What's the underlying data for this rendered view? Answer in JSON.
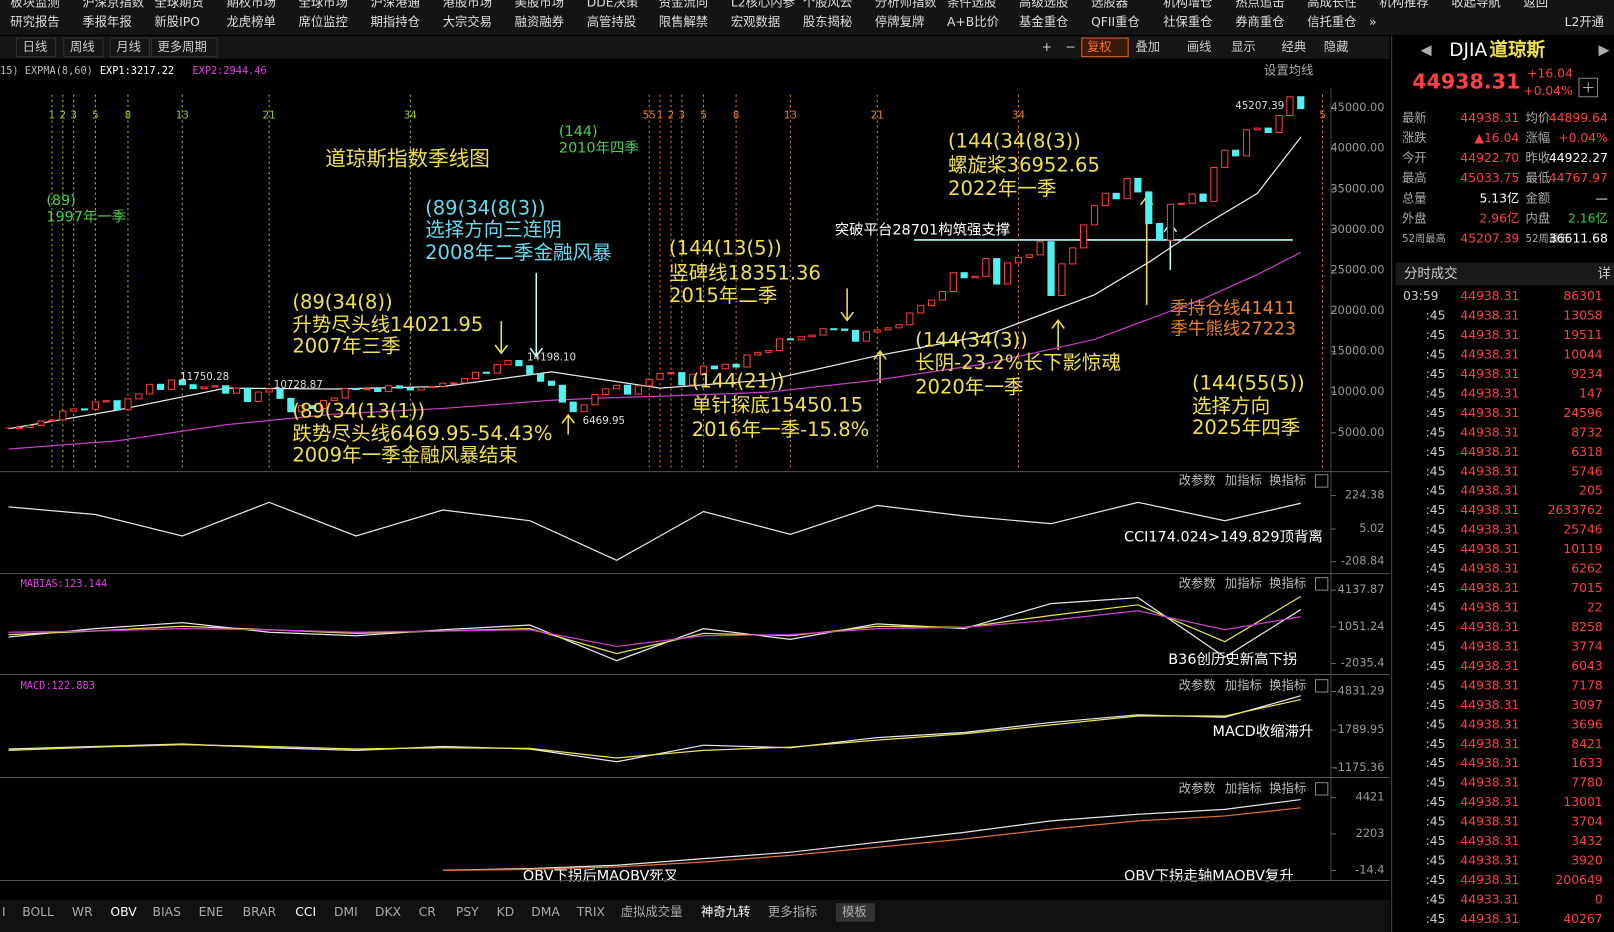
{
  "nav": {
    "row1": [
      "板块监测",
      "沪深京指数",
      "全球期货",
      "期权市场",
      "全球市场",
      "沪深港通",
      "港股市场",
      "美股市场",
      "DDE决策",
      "资金流向",
      "L2核心内参",
      "个股风云",
      "分析师指数",
      "条件选股",
      "高级选股",
      "选股器",
      "机构增仓",
      "热点追击",
      "高成长性",
      "机构推荐",
      "收起导航",
      "返回"
    ],
    "row2": [
      "研究报告",
      "季报年报",
      "新股IPO",
      "龙虎榜单",
      "席位监控",
      "期指持仓",
      "大宗交易",
      "融资融券",
      "高管持股",
      "限售解禁",
      "宏观数据",
      "股东揭秘",
      "停牌复牌",
      "A+B比价",
      "基金重仓",
      "QFII重仓",
      "社保重仓",
      "券商重仓",
      "信托重仓",
      "»",
      "L2开通"
    ]
  },
  "toolbar": {
    "periods": [
      "日线",
      "周线",
      "月线",
      "更多周期"
    ],
    "tools": [
      "+",
      "−",
      "复权",
      "叠加",
      "画线",
      "显示",
      "经典",
      "隐藏"
    ]
  },
  "panel_buttons": [
    "改参数",
    "加指标",
    "换指标"
  ],
  "chart_data": [
    {
      "type": "candlestick",
      "title": "道琼斯指数季线图",
      "indicator_label": "15) EXPMA(8,60)",
      "exp_labels": [
        "EXP1:3217.22",
        "EXP2:2944.46"
      ],
      "settings_button": "设置均线",
      "values": [
        5600,
        5650,
        5880,
        6450,
        6580,
        7670,
        7940,
        7900,
        8800,
        8950,
        7840,
        9180,
        9790,
        10970,
        10340,
        11500,
        10920,
        10450,
        10650,
        10790,
        9880,
        10500,
        8850,
        10020,
        10400,
        9240,
        7590,
        8340,
        7990,
        8980,
        9280,
        10450,
        10360,
        10430,
        10080,
        10780,
        10500,
        10270,
        10570,
        10720,
        11110,
        11150,
        11680,
        12460,
        12350,
        13400,
        13900,
        13260,
        12260,
        11350,
        10850,
        8780,
        7600,
        8450,
        9710,
        10430,
        10860,
        9770,
        10790,
        11580,
        12320,
        12410,
        10910,
        12220,
        13210,
        12880,
        13440,
        13100,
        14580,
        14910,
        15130,
        16580,
        16460,
        16830,
        17040,
        17820,
        17780,
        17620,
        16280,
        17430,
        17690,
        17930,
        18310,
        19760,
        20660,
        21350,
        22410,
        24720,
        24100,
        24270,
        26460,
        23330,
        25930,
        26600,
        26920,
        28540,
        21920,
        25810,
        27780,
        30610,
        32980,
        34500,
        33840,
        36340,
        34680,
        30780,
        28730,
        33150,
        33270,
        34410,
        33510,
        37690,
        39810,
        39120,
        42330,
        42540,
        42000,
        44090,
        46400,
        44940
      ],
      "up_color": "#ff3c3c",
      "down_color": "#54f0f0",
      "ylim": [
        500,
        47500
      ],
      "yticks": [
        {
          "value": 45000,
          "label": "45000.00"
        },
        {
          "value": 40000,
          "label": "40000.00"
        },
        {
          "value": 35000,
          "label": "35000.00"
        },
        {
          "value": 30000,
          "label": "30000.00"
        },
        {
          "value": 25000,
          "label": "25000.00"
        },
        {
          "value": 20000,
          "label": "20000.00"
        },
        {
          "value": 15000,
          "label": "15000.00"
        },
        {
          "value": 10000,
          "label": "10000.00"
        },
        {
          "value": 5000,
          "label": "5000.00"
        }
      ],
      "lines": [
        {
          "color": "#e8e8e8",
          "x": [
            0,
            10,
            20,
            30,
            40,
            50,
            55,
            60,
            70,
            80,
            90,
            100,
            105,
            110,
            115,
            119
          ],
          "values": [
            5500,
            7800,
            10500,
            10400,
            10700,
            12500,
            11500,
            10500,
            11500,
            14500,
            17000,
            22000,
            26000,
            30500,
            34500,
            41411
          ]
        },
        {
          "color": "#c83cc8",
          "x": [
            0,
            10,
            20,
            30,
            40,
            50,
            55,
            60,
            70,
            80,
            90,
            100,
            105,
            110,
            115,
            119
          ],
          "values": [
            3000,
            4000,
            6000,
            7300,
            8000,
            9000,
            9300,
            9500,
            10000,
            11500,
            13500,
            16500,
            19000,
            21500,
            24500,
            27223
          ]
        }
      ],
      "cycles": [
        {
          "color": "#9acd32",
          "x": [
            4,
            5,
            6,
            8,
            11,
            16,
            24,
            37
          ],
          "labels": [
            "1",
            "2",
            "3",
            "5",
            "8",
            "13",
            "21",
            "34"
          ]
        },
        {
          "color": "#e8842a",
          "x": [
            59,
            60,
            61,
            62,
            64,
            67,
            72,
            80,
            93,
            121
          ],
          "labels": [
            "55",
            "1",
            "2",
            "3",
            "5",
            "8",
            "13",
            "21",
            "34",
            "5"
          ]
        }
      ],
      "price_labels": [
        "11750.28",
        "10728.87",
        "14198.10",
        "6469.95",
        "45207.39"
      ],
      "annotations": [
        {
          "text": "道琼斯指数季线图",
          "color": "#f0e050"
        },
        {
          "text": "(89)",
          "color": "#4cd04c"
        },
        {
          "text": "1997年一季",
          "color": "#4cd04c"
        },
        {
          "text": "(89(34(8(3))",
          "color": "#66d9ef"
        },
        {
          "text": "选择方向三连阴",
          "color": "#66d9ef"
        },
        {
          "text": "2008年二季金融风暴",
          "color": "#66d9ef"
        },
        {
          "text": "(144)",
          "color": "#4cd04c"
        },
        {
          "text": "2010年四季",
          "color": "#4cd04c"
        },
        {
          "text": "(89(34(8))",
          "color": "#f0e050"
        },
        {
          "text": "升势尽头线14021.95",
          "color": "#f0e050"
        },
        {
          "text": "2007年三季",
          "color": "#f0e050"
        },
        {
          "text": "(89(34(13(1))",
          "color": "#f0e050"
        },
        {
          "text": "跌势尽头线6469.95-54.43%",
          "color": "#f0e050"
        },
        {
          "text": "2009年一季金融风暴结束",
          "color": "#f0e050"
        },
        {
          "text": "(144(13(5))",
          "color": "#f0e050"
        },
        {
          "text": "竖碑线18351.36",
          "color": "#f0e050"
        },
        {
          "text": "2015年二季",
          "color": "#f0e050"
        },
        {
          "text": "(144(21))",
          "color": "#f0e050"
        },
        {
          "text": "单针探底15450.15",
          "color": "#f0e050"
        },
        {
          "text": "2016年一季-15.8%",
          "color": "#f0e050"
        },
        {
          "text": "(144(34(8(3))",
          "color": "#f0e050"
        },
        {
          "text": "螺旋桨36952.65",
          "color": "#f0e050"
        },
        {
          "text": "2022年一季",
          "color": "#f0e050"
        },
        {
          "text": "突破平台28701构筑强支撑",
          "color": "#ffffff"
        },
        {
          "text": "(144(34(3))",
          "color": "#f0e050"
        },
        {
          "text": "长阴-23.2%长下影惊魂",
          "color": "#f0e050"
        },
        {
          "text": "2020年一季",
          "color": "#f0e050"
        },
        {
          "text": "季持仓线41411",
          "color": "#e8842a"
        },
        {
          "text": "季牛熊线27223",
          "color": "#e8842a"
        },
        {
          "text": "(144(55(5))",
          "color": "#f0e050"
        },
        {
          "text": "选择方向",
          "color": "#f0e050"
        },
        {
          "text": "2025年四季",
          "color": "#f0e050"
        }
      ]
    },
    {
      "type": "line",
      "notes": [
        "CCI174.024>149.829顶背离"
      ],
      "ylim": [
        -260,
        300
      ],
      "yticks": [
        224.38,
        5.02,
        -208.84
      ],
      "series": [
        {
          "color": "#e8e8e8",
          "x": [
            0,
            8,
            16,
            24,
            32,
            40,
            48,
            56,
            64,
            72,
            80,
            88,
            96,
            104,
            112,
            119
          ],
          "values": [
            150,
            100,
            -40,
            180,
            -40,
            130,
            60,
            -200,
            120,
            -30,
            160,
            90,
            40,
            180,
            60,
            174
          ]
        }
      ]
    },
    {
      "type": "line",
      "label": "MABIAS:123.144",
      "notes": [
        "B36创历史新高下拐"
      ],
      "ylim": [
        -2700,
        5000
      ],
      "yticks": [
        4137.87,
        1051.24,
        -2035.4
      ],
      "series": [
        {
          "color": "#e8e8e8",
          "x": [
            0,
            8,
            16,
            24,
            32,
            40,
            48,
            56,
            64,
            72,
            80,
            88,
            96,
            104,
            112,
            119
          ],
          "values": [
            200,
            900,
            1400,
            600,
            300,
            800,
            1200,
            -1800,
            900,
            0,
            1300,
            900,
            3000,
            3500,
            -1500,
            2500
          ]
        },
        {
          "color": "#e6e64c",
          "x": [
            0,
            8,
            16,
            24,
            32,
            40,
            48,
            56,
            64,
            72,
            80,
            88,
            96,
            104,
            112,
            119
          ],
          "values": [
            400,
            700,
            1100,
            800,
            500,
            700,
            900,
            -1200,
            500,
            300,
            1100,
            1000,
            2000,
            2900,
            -200,
            3600
          ]
        },
        {
          "color": "#d040d0",
          "x": [
            0,
            8,
            16,
            24,
            32,
            40,
            48,
            56,
            64,
            72,
            80,
            88,
            96,
            104,
            112,
            119
          ],
          "values": [
            600,
            700,
            900,
            800,
            600,
            700,
            800,
            -600,
            300,
            400,
            900,
            1000,
            1600,
            2400,
            800,
            1900
          ]
        }
      ]
    },
    {
      "type": "line",
      "label": "MACD:122.883",
      "notes": [
        "MACD收缩滞升"
      ],
      "ylim": [
        -1700,
        5600
      ],
      "yticks": [
        4831.29,
        1789.95,
        -1175.36
      ],
      "series": [
        {
          "color": "#e8e8e8",
          "x": [
            0,
            8,
            16,
            24,
            32,
            40,
            48,
            56,
            64,
            72,
            80,
            88,
            96,
            104,
            112,
            119
          ],
          "values": [
            300,
            500,
            700,
            400,
            200,
            500,
            300,
            -700,
            600,
            400,
            1200,
            1600,
            2400,
            3000,
            2800,
            4500
          ]
        },
        {
          "color": "#e6e64c",
          "x": [
            0,
            8,
            16,
            24,
            32,
            40,
            48,
            56,
            64,
            72,
            80,
            88,
            96,
            104,
            112,
            119
          ],
          "values": [
            200,
            450,
            650,
            500,
            300,
            400,
            350,
            -400,
            200,
            450,
            1000,
            1500,
            2200,
            2900,
            2900,
            4200
          ]
        }
      ]
    },
    {
      "type": "line",
      "notes": [
        "OBV下拐后MAOBV死叉",
        "OBV下拐走轴MAOBV复升"
      ],
      "ylim": [
        -500,
        5200
      ],
      "yticks": [
        4421,
        2203,
        -14.4
      ],
      "series": [
        {
          "color": "#e8e8e8",
          "x": [
            0,
            8,
            16,
            24,
            32,
            40,
            48,
            56,
            64,
            72,
            80,
            88,
            96,
            104,
            112,
            119
          ],
          "values": [
            null,
            null,
            null,
            null,
            null,
            0,
            100,
            300,
            700,
            1100,
            1700,
            2300,
            3000,
            3400,
            3700,
            4300
          ]
        },
        {
          "color": "#e0703a",
          "x": [
            0,
            8,
            16,
            24,
            32,
            40,
            48,
            56,
            64,
            72,
            80,
            88,
            96,
            104,
            112,
            119
          ],
          "values": [
            null,
            null,
            null,
            null,
            null,
            -14,
            50,
            200,
            500,
            900,
            1400,
            1900,
            2500,
            3000,
            3300,
            3800
          ]
        }
      ]
    }
  ],
  "quote": {
    "symbol": "DJIA",
    "name": "道琼斯",
    "price": "44938.31",
    "change": "+16.04",
    "change_pct": "+0.04%",
    "rows": [
      [
        "最新",
        "44938.31",
        "均价",
        "44899.64"
      ],
      [
        "涨跌",
        "▲16.04",
        "涨幅",
        "+0.04%"
      ],
      [
        "今开",
        "44922.70",
        "昨收",
        "44922.27"
      ],
      [
        "最高",
        "45033.75",
        "最低",
        "44767.97"
      ],
      [
        "总量",
        "5.13亿",
        "金额",
        "—"
      ],
      [
        "外盘",
        "2.96亿",
        "内盘",
        "2.16亿"
      ],
      [
        "52周最高",
        "45207.39",
        "52周最低",
        "36611.68"
      ]
    ],
    "trades_title": "分时成交",
    "detail": "详",
    "trades": [
      [
        "03:59",
        "44938.31",
        "86301"
      ],
      [
        ":45",
        "44938.31",
        "13058"
      ],
      [
        ":45",
        "44938.31",
        "19511"
      ],
      [
        ":45",
        "44938.31",
        "10044"
      ],
      [
        ":45",
        "44938.31",
        "9234"
      ],
      [
        ":45",
        "44938.31",
        "147"
      ],
      [
        ":45",
        "44938.31",
        "24596"
      ],
      [
        ":45",
        "44938.31",
        "8732"
      ],
      [
        ":45",
        "44938.31",
        "6318"
      ],
      [
        ":45",
        "44938.31",
        "5746"
      ],
      [
        ":45",
        "44938.31",
        "205"
      ],
      [
        ":45",
        "44938.31",
        "2633762"
      ],
      [
        ":45",
        "44938.31",
        "25746"
      ],
      [
        ":45",
        "44938.31",
        "10119"
      ],
      [
        ":45",
        "44938.31",
        "6262"
      ],
      [
        ":45",
        "44938.31",
        "7015"
      ],
      [
        ":45",
        "44938.31",
        "22"
      ],
      [
        ":45",
        "44938.31",
        "8258"
      ],
      [
        ":45",
        "44938.31",
        "3774"
      ],
      [
        ":45",
        "44938.31",
        "6043"
      ],
      [
        ":45",
        "44938.31",
        "7178"
      ],
      [
        ":45",
        "44938.31",
        "3097"
      ],
      [
        ":45",
        "44938.31",
        "3696"
      ],
      [
        ":45",
        "44938.31",
        "8421"
      ],
      [
        ":45",
        "44938.31",
        "1633"
      ],
      [
        ":45",
        "44938.31",
        "7780"
      ],
      [
        ":45",
        "44938.31",
        "13001"
      ],
      [
        ":45",
        "44938.31",
        "3704"
      ],
      [
        ":45",
        "44938.31",
        "3432"
      ],
      [
        ":45",
        "44938.31",
        "3920"
      ],
      [
        ":45",
        "44938.31",
        "200649"
      ],
      [
        ":45",
        "44933.31",
        "0"
      ],
      [
        ":45",
        "44938.31",
        "40267"
      ]
    ]
  },
  "tabs": [
    "I",
    "BOLL",
    "WR",
    "OBV",
    "BIAS",
    "ENE",
    "BRAR",
    "CCI",
    "DMI",
    "DKX",
    "CR",
    "PSY",
    "KD",
    "DMA",
    "TRIX",
    "虚拟成交量",
    "神奇九转",
    "更多指标",
    "模板"
  ]
}
